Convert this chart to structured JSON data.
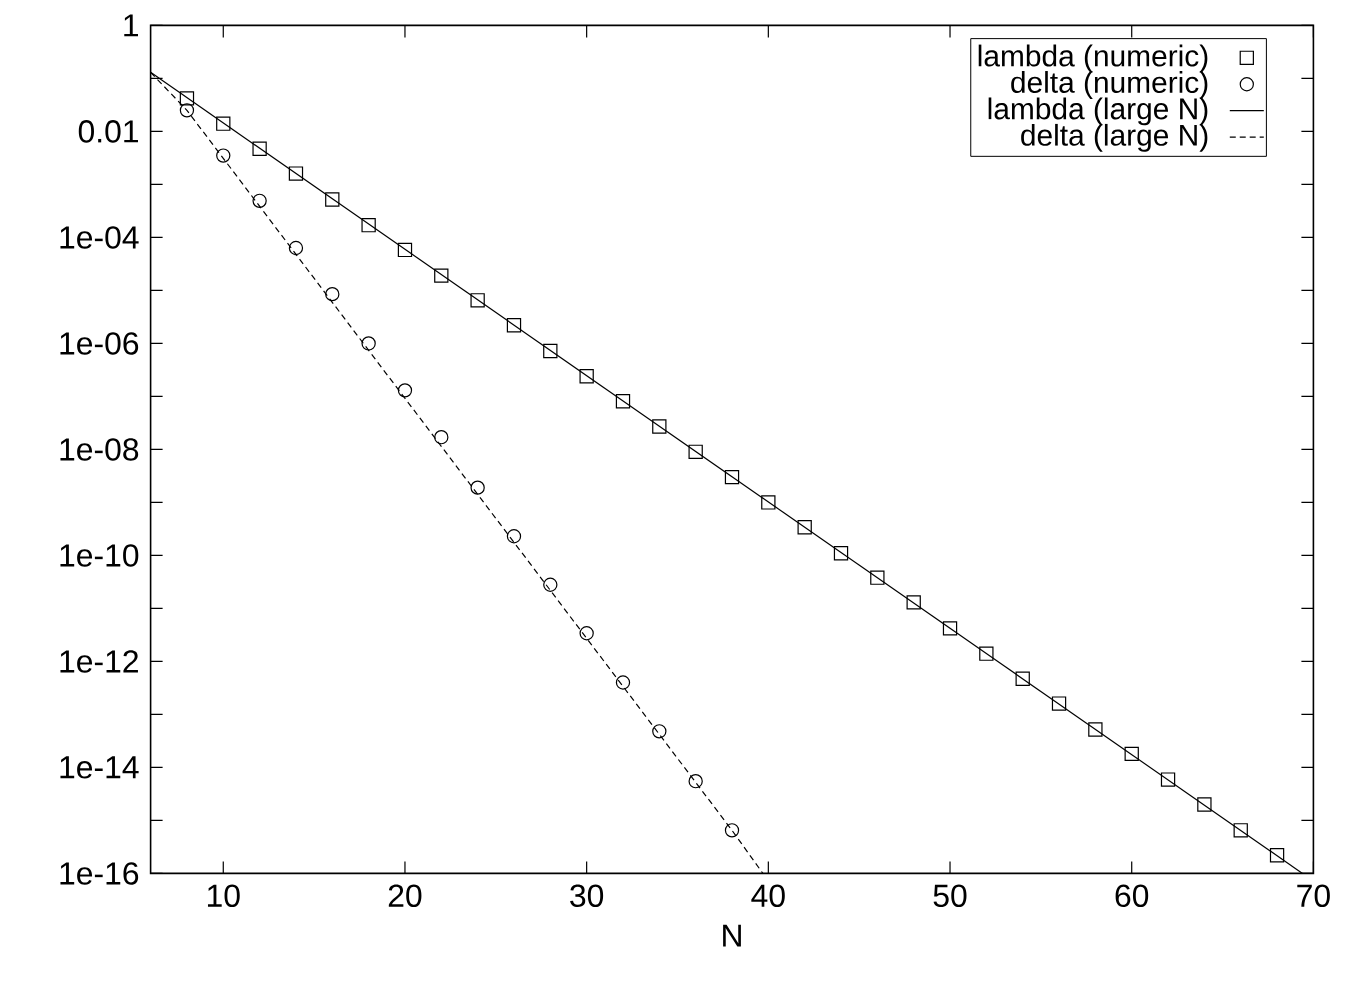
{
  "chart_data": {
    "type": "line",
    "xlabel": "N",
    "log": "y",
    "legend": "top right",
    "xlim": [
      6,
      70
    ],
    "ylim": [
      1e-16,
      1
    ],
    "xticks": [
      10,
      20,
      30,
      40,
      50,
      60,
      70
    ],
    "yticks": [
      {
        "value": 1,
        "label": "1"
      },
      {
        "value": 0.1,
        "label": null
      },
      {
        "value": 0.01,
        "label": "0.01"
      },
      {
        "value": 0.001,
        "label": null
      },
      {
        "value": 0.0001,
        "label": "1e-04"
      },
      {
        "value": 1e-05,
        "label": null
      },
      {
        "value": 1e-06,
        "label": "1e-06"
      },
      {
        "value": 1e-07,
        "label": null
      },
      {
        "value": 1e-08,
        "label": "1e-08"
      },
      {
        "value": 1e-09,
        "label": null
      },
      {
        "value": 1e-10,
        "label": "1e-10"
      },
      {
        "value": 1e-11,
        "label": null
      },
      {
        "value": 1e-12,
        "label": "1e-12"
      },
      {
        "value": 1e-13,
        "label": null
      },
      {
        "value": 1e-14,
        "label": "1e-14"
      },
      {
        "value": 1e-15,
        "label": null
      },
      {
        "value": 1e-16,
        "label": "1e-16"
      }
    ],
    "series": [
      {
        "name": "lambda (numeric)",
        "type": "scatter",
        "marker": "square",
        "color": "#000000",
        "x": [
          8,
          10,
          12,
          14,
          16,
          18,
          20,
          22,
          24,
          26,
          28,
          30,
          32,
          34,
          36,
          38,
          40,
          42,
          44,
          46,
          48,
          50,
          52,
          54,
          56,
          58,
          60,
          62,
          64,
          66,
          68
        ],
        "values": [
          0.042,
          0.014,
          0.0047,
          0.0016,
          0.00052,
          0.00017,
          5.8e-05,
          1.9e-05,
          6.5e-06,
          2.2e-06,
          7.2e-07,
          2.4e-07,
          8.1e-08,
          2.7e-08,
          9e-09,
          3e-09,
          1e-09,
          3.4e-10,
          1.1e-10,
          3.8e-11,
          1.3e-11,
          4.2e-12,
          1.4e-12,
          4.7e-13,
          1.6e-13,
          5.2e-14,
          1.8e-14,
          5.9e-15,
          2e-15,
          6.5e-16,
          2.2e-16
        ]
      },
      {
        "name": "delta (numeric)",
        "type": "scatter",
        "marker": "circle",
        "color": "#000000",
        "x": [
          8,
          10,
          12,
          14,
          16,
          18,
          20,
          22,
          24,
          26,
          28,
          30,
          32,
          34,
          36,
          38
        ],
        "values": [
          0.025,
          0.0035,
          0.00049,
          6.3e-05,
          8.5e-06,
          1e-06,
          1.3e-07,
          1.7e-08,
          1.9e-09,
          2.3e-10,
          2.8e-11,
          3.4e-12,
          4e-13,
          4.8e-14,
          5.5e-15,
          6.5e-16
        ]
      },
      {
        "name": "lambda (large N)",
        "line_style": "solid",
        "marker": "none",
        "color": "#000000",
        "x": [
          6,
          69.4
        ],
        "values": [
          0.13,
          1e-16
        ]
      },
      {
        "name": "delta (large N)",
        "line_style": "dashed",
        "marker": "none",
        "color": "#000000",
        "x": [
          6,
          8,
          38,
          39.7
        ],
        "values": [
          0.13,
          0.025,
          6.5e-16,
          1e-16
        ]
      }
    ]
  }
}
